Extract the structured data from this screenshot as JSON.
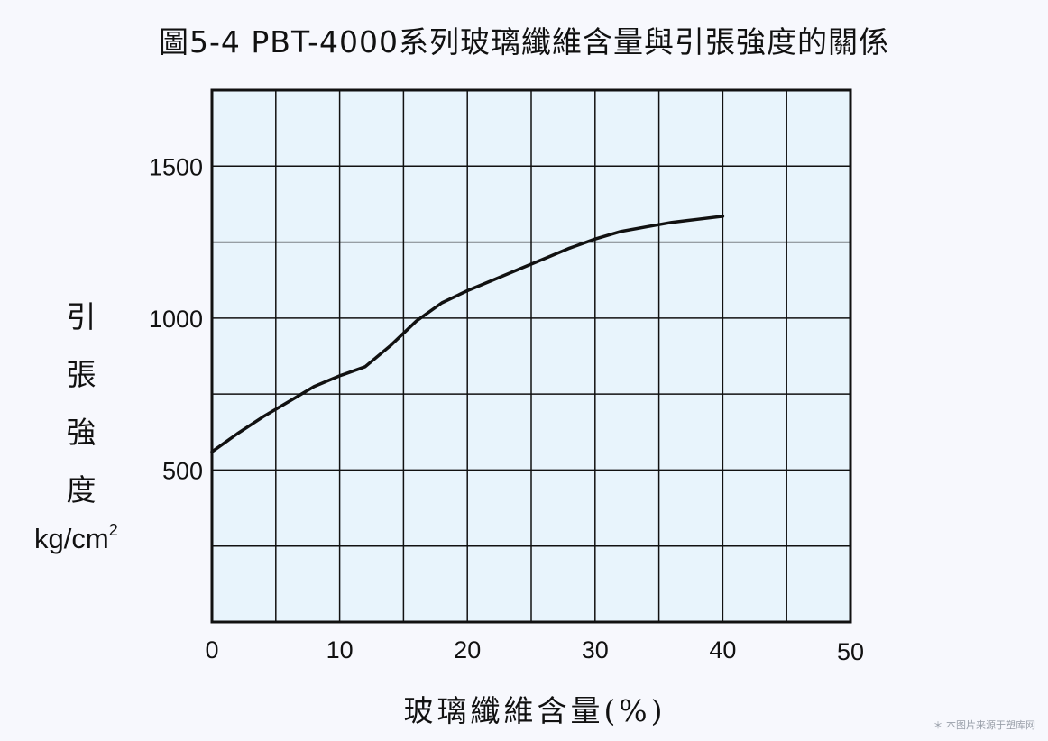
{
  "chart_data": {
    "type": "line",
    "title": "圖5-4 PBT-4000系列玻璃纖維含量與引張強度的關係",
    "xlabel": "玻璃纖維含量(%)",
    "ylabel_chars": [
      "引",
      "張",
      "強",
      "度"
    ],
    "ylabel_unit": "kg/cm",
    "ylabel_unit_sup": "2",
    "xlim": [
      0,
      50
    ],
    "ylim": [
      0,
      1750
    ],
    "x_ticks": [
      0,
      10,
      20,
      30,
      40,
      50
    ],
    "y_ticks": [
      500,
      1000,
      1500
    ],
    "grid": true,
    "series": [
      {
        "color": "#111111",
        "x": [
          0,
          2,
          4,
          6,
          8,
          10,
          12,
          14,
          16,
          18,
          20,
          22,
          24,
          26,
          28,
          30,
          32,
          34,
          36,
          38,
          40
        ],
        "y": [
          560,
          620,
          675,
          725,
          775,
          810,
          840,
          910,
          990,
          1050,
          1090,
          1125,
          1160,
          1195,
          1230,
          1260,
          1285,
          1300,
          1315,
          1325,
          1335
        ]
      }
    ]
  },
  "footnote": "＊ 本图片来源于塑库网"
}
